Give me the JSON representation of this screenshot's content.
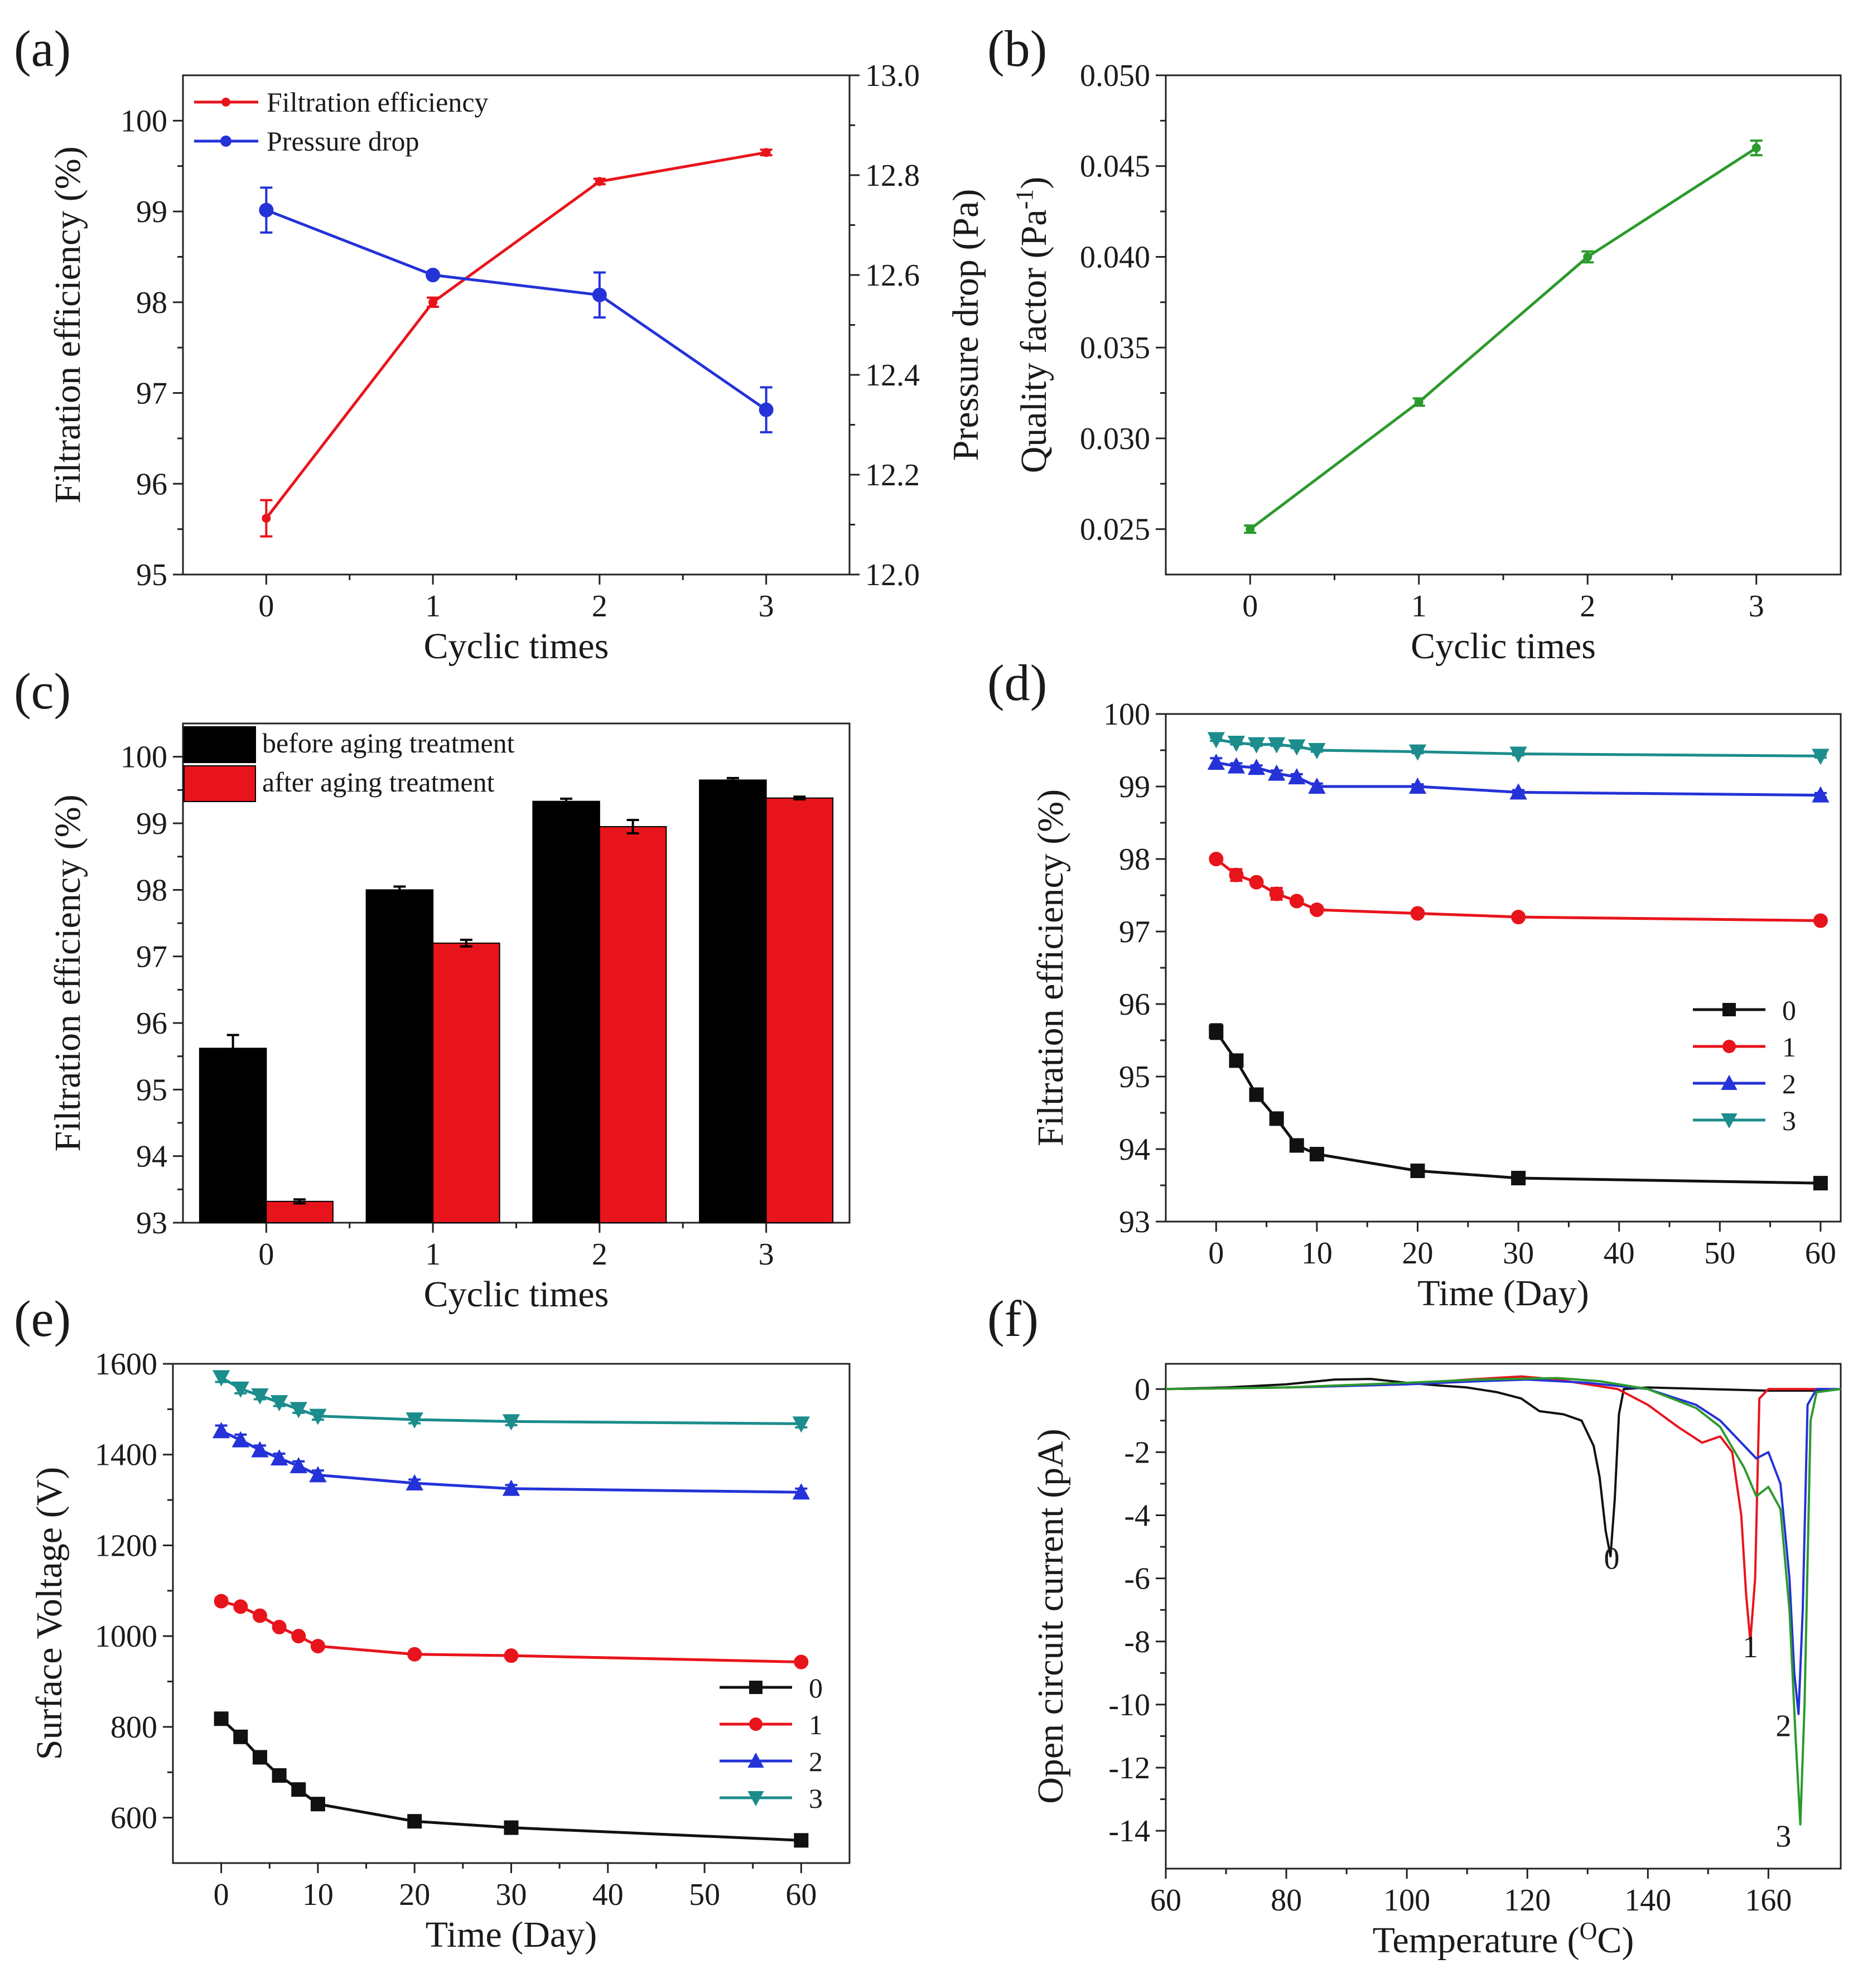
{
  "colors": {
    "red": "#e8141c",
    "blue": "#2432d8",
    "black": "#111111",
    "teal": "#1c8c8c",
    "green": "#2c9a2c"
  },
  "chart_data": [
    {
      "id": "a",
      "panel_label": "(a)",
      "type": "line",
      "xlabel": "Cyclic times",
      "ylabel": "Filtration efficiency (%)",
      "ylabel2": "Pressure drop (Pa)",
      "x": [
        0,
        1,
        2,
        3
      ],
      "xticks": [
        "0",
        "1",
        "2",
        "3"
      ],
      "xlim": [
        -0.5,
        3.5
      ],
      "ylim": [
        95,
        100.5
      ],
      "yticks": [
        "95",
        "96",
        "97",
        "98",
        "99",
        "100"
      ],
      "y2lim": [
        12.0,
        13.0
      ],
      "y2ticks": [
        "12.0",
        "12.2",
        "12.4",
        "12.6",
        "12.8",
        "13.0"
      ],
      "series": [
        {
          "name": "Filtration efficiency",
          "axis": "left",
          "color": "#e8141c",
          "marker": "dot",
          "values": [
            95.62,
            98.0,
            99.33,
            99.65
          ],
          "errors": [
            0.2,
            0.05,
            0.03,
            0.03
          ]
        },
        {
          "name": "Pressure drop",
          "axis": "right",
          "color": "#2432d8",
          "marker": "circle",
          "values": [
            12.73,
            12.6,
            12.56,
            12.33
          ],
          "errors": [
            0.045,
            0.005,
            0.045,
            0.045
          ]
        }
      ]
    },
    {
      "id": "b",
      "panel_label": "(b)",
      "type": "line",
      "xlabel": "Cyclic times",
      "ylabel": "Quality factor (Pa",
      "ylabel_sup": "-1",
      "ylabel_end": ")",
      "x": [
        0,
        1,
        2,
        3
      ],
      "xticks": [
        "0",
        "1",
        "2",
        "3"
      ],
      "xlim": [
        -0.5,
        3.5
      ],
      "ylim": [
        0.0225,
        0.05
      ],
      "yticks": [
        "0.025",
        "0.030",
        "0.035",
        "0.040",
        "0.045",
        "0.050"
      ],
      "series": [
        {
          "name": "Quality factor",
          "color": "#2c9a2c",
          "values": [
            0.025,
            0.032,
            0.04,
            0.046
          ],
          "errors": [
            0.0002,
            0.0002,
            0.0003,
            0.0004
          ]
        }
      ]
    },
    {
      "id": "c",
      "panel_label": "(c)",
      "type": "bar",
      "xlabel": "Cyclic times",
      "ylabel": "Filtration efficiency (%)",
      "categories": [
        "0",
        "1",
        "2",
        "3"
      ],
      "xlim": [
        -0.5,
        3.5
      ],
      "ylim": [
        93,
        100.5
      ],
      "yticks": [
        "93",
        "94",
        "95",
        "96",
        "97",
        "98",
        "99",
        "100"
      ],
      "series": [
        {
          "name": "before aging treatment",
          "color": "#000000",
          "values": [
            95.62,
            98.0,
            99.33,
            99.65
          ],
          "errors": [
            0.2,
            0.05,
            0.04,
            0.03
          ]
        },
        {
          "name": "after aging treatment",
          "color": "#e8141c",
          "values": [
            93.32,
            97.2,
            98.95,
            99.38
          ],
          "errors": [
            0.03,
            0.05,
            0.1,
            0.02
          ]
        }
      ]
    },
    {
      "id": "d",
      "panel_label": "(d)",
      "type": "line",
      "xlabel": "Time (Day)",
      "ylabel": "Filtration efficiency (%)",
      "xlim": [
        -5,
        62
      ],
      "xticks": [
        "0",
        "10",
        "20",
        "30",
        "40",
        "50",
        "60"
      ],
      "ylim": [
        93,
        100
      ],
      "yticks": [
        "93",
        "94",
        "95",
        "96",
        "97",
        "98",
        "99",
        "100"
      ],
      "x": [
        0,
        2,
        4,
        6,
        8,
        10,
        20,
        30,
        60
      ],
      "legend_position": "right",
      "series": [
        {
          "name": "0",
          "color": "#111111",
          "marker": "square",
          "values": [
            95.62,
            95.22,
            94.75,
            94.42,
            94.05,
            93.93,
            93.7,
            93.6,
            93.53
          ],
          "errors": [
            0.1,
            0.02,
            0.02,
            0.02,
            0.02,
            0.02,
            0.02,
            0.02,
            0.02
          ]
        },
        {
          "name": "1",
          "color": "#e8141c",
          "marker": "circle",
          "values": [
            98.0,
            97.78,
            97.68,
            97.52,
            97.42,
            97.3,
            97.25,
            97.2,
            97.15
          ],
          "errors": [
            0.02,
            0.08,
            0.02,
            0.08,
            0.02,
            0.02,
            0.02,
            0.02,
            0.02
          ]
        },
        {
          "name": "2",
          "color": "#2432d8",
          "marker": "triangle-up",
          "values": [
            99.33,
            99.28,
            99.26,
            99.18,
            99.13,
            99.0,
            99.0,
            98.92,
            98.88
          ],
          "errors": [
            0.06,
            0.04,
            0.03,
            0.04,
            0.04,
            0.04,
            0.03,
            0.03,
            0.03
          ]
        },
        {
          "name": "3",
          "color": "#1c8c8c",
          "marker": "triangle-down",
          "values": [
            99.65,
            99.6,
            99.58,
            99.58,
            99.55,
            99.5,
            99.48,
            99.45,
            99.42
          ],
          "errors": [
            0.02,
            0.02,
            0.02,
            0.02,
            0.02,
            0.02,
            0.02,
            0.02,
            0.02
          ]
        }
      ]
    },
    {
      "id": "e",
      "panel_label": "(e)",
      "type": "line",
      "xlabel": "Time (Day)",
      "ylabel": "Surface Voltage (V)",
      "xlim": [
        -5,
        65
      ],
      "xticks": [
        "0",
        "10",
        "20",
        "30",
        "40",
        "50",
        "60"
      ],
      "ylim": [
        500,
        1600
      ],
      "yticks": [
        "600",
        "800",
        "1000",
        "1200",
        "1400",
        "1600"
      ],
      "x": [
        0,
        2,
        4,
        6,
        8,
        10,
        20,
        30,
        60
      ],
      "legend_position": "bottom-right",
      "series": [
        {
          "name": "0",
          "color": "#111111",
          "marker": "square",
          "values": [
            818,
            778,
            733,
            693,
            662,
            630,
            592,
            578,
            550
          ],
          "errors": [
            5,
            5,
            5,
            5,
            5,
            5,
            5,
            5,
            5
          ]
        },
        {
          "name": "1",
          "color": "#e8141c",
          "marker": "circle",
          "values": [
            1077,
            1065,
            1045,
            1020,
            1000,
            978,
            960,
            957,
            943
          ],
          "errors": [
            8,
            5,
            5,
            5,
            5,
            5,
            5,
            5,
            5
          ]
        },
        {
          "name": "2",
          "color": "#2432d8",
          "marker": "triangle-up",
          "values": [
            1452,
            1432,
            1410,
            1392,
            1375,
            1355,
            1337,
            1325,
            1317
          ],
          "errors": [
            12,
            12,
            10,
            10,
            10,
            10,
            8,
            8,
            8
          ]
        },
        {
          "name": "3",
          "color": "#1c8c8c",
          "marker": "triangle-down",
          "values": [
            1570,
            1545,
            1530,
            1515,
            1500,
            1485,
            1477,
            1473,
            1468
          ],
          "errors": [
            10,
            10,
            8,
            8,
            8,
            8,
            8,
            8,
            8
          ]
        }
      ]
    },
    {
      "id": "f",
      "panel_label": "(f)",
      "type": "line",
      "xlabel": "Temperature (",
      "xlabel_sup": "O",
      "xlabel_end": "C)",
      "ylabel": "Open circuit current (pA)",
      "xlim": [
        60,
        172
      ],
      "xticks": [
        "60",
        "80",
        "100",
        "120",
        "140",
        "160"
      ],
      "ylim": [
        -15.2,
        0.8
      ],
      "yticks": [
        "0",
        "-2",
        "-4",
        "-6",
        "-8",
        "-10",
        "-12",
        "-14"
      ],
      "annotations": [
        {
          "text": "0",
          "color": "#111111",
          "x": 134,
          "y": -5.7
        },
        {
          "text": "1",
          "color": "#e8141c",
          "x": 157,
          "y": -8.5
        },
        {
          "text": "2",
          "color": "#2432d8",
          "x": 162.5,
          "y": -11
        },
        {
          "text": "3",
          "color": "#2c9a2c",
          "x": 162.5,
          "y": -14.5
        }
      ],
      "series": [
        {
          "name": "0",
          "color": "#111111",
          "x": [
            60,
            70,
            80,
            88,
            94,
            100,
            105,
            110,
            115,
            119,
            122,
            126,
            129,
            131,
            132,
            133,
            133.8,
            134.5,
            135.2,
            136,
            140,
            150,
            160,
            170
          ],
          "values": [
            0,
            0.05,
            0.15,
            0.3,
            0.32,
            0.2,
            0.12,
            0.05,
            -0.1,
            -0.3,
            -0.7,
            -0.8,
            -1.0,
            -1.8,
            -2.8,
            -4.5,
            -5.3,
            -3.5,
            -0.8,
            0.0,
            0.05,
            0.0,
            -0.05,
            -0.05
          ]
        },
        {
          "name": "1",
          "color": "#e8141c",
          "x": [
            60,
            80,
            100,
            110,
            119,
            125,
            130,
            135,
            140,
            145,
            149,
            152,
            154,
            155.5,
            156.3,
            157,
            157.8,
            158.5,
            160,
            170
          ],
          "values": [
            0,
            0.05,
            0.15,
            0.3,
            0.4,
            0.3,
            0.15,
            0.0,
            -0.5,
            -1.2,
            -1.7,
            -1.5,
            -2.0,
            -4.0,
            -6.5,
            -8.0,
            -6.0,
            -0.3,
            0.0,
            0.0
          ]
        },
        {
          "name": "2",
          "color": "#2432d8",
          "x": [
            60,
            80,
            100,
            112,
            120,
            130,
            140,
            148,
            152,
            156,
            158,
            160,
            162,
            163.5,
            164.3,
            165,
            165.7,
            166.5,
            168,
            172
          ],
          "values": [
            0,
            0.05,
            0.15,
            0.25,
            0.3,
            0.2,
            0.0,
            -0.5,
            -1.0,
            -1.8,
            -2.2,
            -2.0,
            -3.0,
            -6.0,
            -9.0,
            -10.3,
            -7.0,
            -0.5,
            0.0,
            0.0
          ]
        },
        {
          "name": "3",
          "color": "#2c9a2c",
          "x": [
            60,
            80,
            100,
            112,
            125,
            132,
            140,
            148,
            152,
            156,
            158,
            160,
            162,
            163.5,
            164.5,
            165.3,
            166,
            167,
            168,
            172
          ],
          "values": [
            0,
            0.05,
            0.2,
            0.3,
            0.35,
            0.25,
            0.0,
            -0.6,
            -1.2,
            -2.5,
            -3.4,
            -3.1,
            -3.8,
            -7.0,
            -11.0,
            -13.8,
            -10.0,
            -1.0,
            -0.1,
            0.0
          ]
        }
      ]
    }
  ]
}
